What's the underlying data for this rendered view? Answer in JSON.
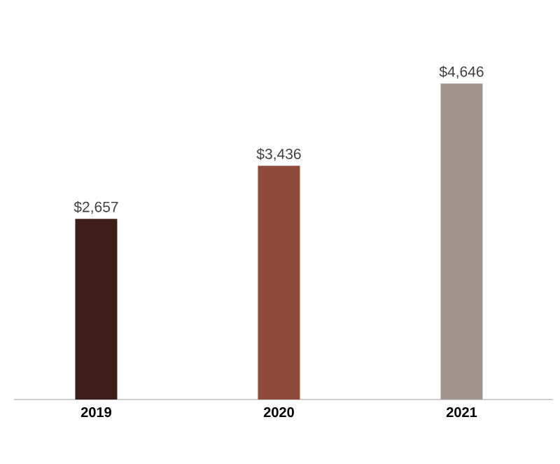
{
  "chart_data": {
    "type": "bar",
    "categories": [
      "2019",
      "2020",
      "2021"
    ],
    "values": [
      2657,
      3436,
      4646
    ],
    "value_labels": [
      "$2,657",
      "$3,436",
      "$4,646"
    ],
    "colors": [
      "#3b1f18",
      "#8e4b3c",
      "#a3958f"
    ]
  }
}
